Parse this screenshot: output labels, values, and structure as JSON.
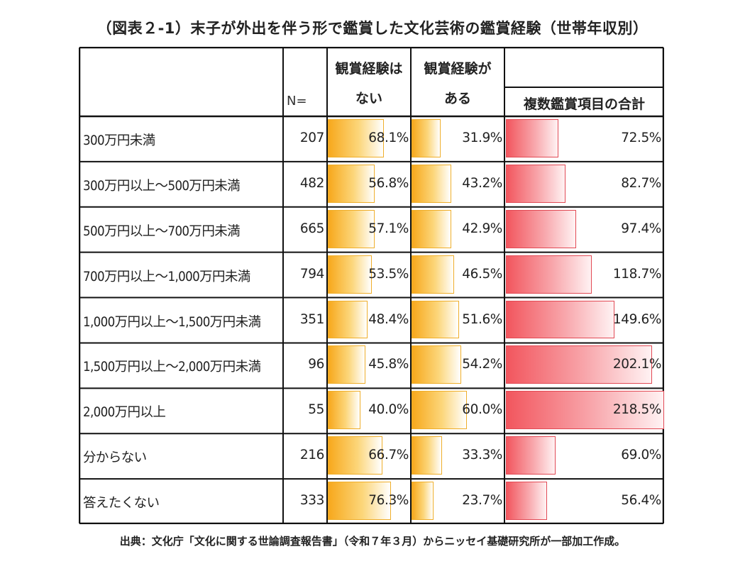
{
  "title": "（図表２-1）末子が外出を伴う形で鑑賞した文化芸術の鑑賞経験（世帯年収別）",
  "source": "出典：文化庁「文化に関する世論調査報告書」（令和７年３月）からニッセイ基礎研究所が一部加工作成。",
  "colors": {
    "orange": "#f7a81c",
    "red": "#f2565e",
    "grid": "#111111"
  },
  "chart_data": {
    "type": "table",
    "headers": {
      "n": "N=",
      "none_line1": "観賞経験は",
      "none_line2": "ない",
      "some_line1": "観賞経験が",
      "some_line2": "ある",
      "multi": "複数鑑賞項目の合計"
    },
    "unit": "%",
    "rows": [
      {
        "label": "300万円未満",
        "n": 207,
        "none": 68.1,
        "some": 31.9,
        "multi": 72.5
      },
      {
        "label": "300万円以上～500万円未満",
        "n": 482,
        "none": 56.8,
        "some": 43.2,
        "multi": 82.7
      },
      {
        "label": "500万円以上～700万円未満",
        "n": 665,
        "none": 57.1,
        "some": 42.9,
        "multi": 97.4
      },
      {
        "label": "700万円以上～1,000万円未満",
        "n": 794,
        "none": 53.5,
        "some": 46.5,
        "multi": 118.7
      },
      {
        "label": "1,000万円以上～1,500万円未満",
        "n": 351,
        "none": 48.4,
        "some": 51.6,
        "multi": 149.6
      },
      {
        "label": "1,500万円以上～2,000万円未満",
        "n": 96,
        "none": 45.8,
        "some": 54.2,
        "multi": 202.1
      },
      {
        "label": "2,000万円以上",
        "n": 55,
        "none": 40.0,
        "some": 60.0,
        "multi": 218.5
      },
      {
        "label": "分からない",
        "n": 216,
        "none": 66.7,
        "some": 33.3,
        "multi": 69.0
      },
      {
        "label": "答えたくない",
        "n": 333,
        "none": 76.3,
        "some": 23.7,
        "multi": 56.4
      }
    ]
  }
}
